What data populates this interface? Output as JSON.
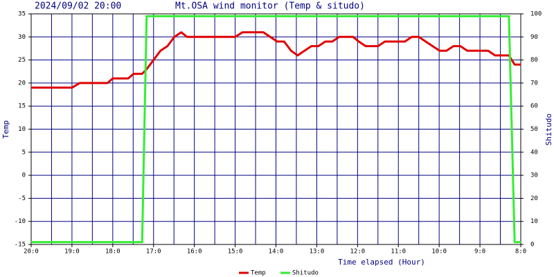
{
  "chart_data": {
    "type": "line",
    "timestamp": "2024/09/02 20:00",
    "title": "Mt.OSA wind monitor (Temp & situdo)",
    "xlabel": "Time elapsed (Hour)",
    "ylabel": "Temp",
    "y2label": "Shitudo",
    "x": [
      20.0,
      19.0,
      18.81,
      18.13,
      18.0,
      17.62,
      17.49,
      17.28,
      17.17,
      17.0,
      16.83,
      16.66,
      16.49,
      16.32,
      16.18,
      15.0,
      14.82,
      14.31,
      14.14,
      13.97,
      13.8,
      13.63,
      13.47,
      13.3,
      13.13,
      12.96,
      12.79,
      12.62,
      12.45,
      12.11,
      11.97,
      11.8,
      11.5,
      11.33,
      10.84,
      10.67,
      10.5,
      10.33,
      10.16,
      9.99,
      9.82,
      9.65,
      9.48,
      9.31,
      8.8,
      8.63,
      8.29,
      8.15,
      8.0
    ],
    "series": [
      {
        "name": "Temp",
        "color": "#e00000",
        "values": [
          19,
          19,
          20,
          20,
          21,
          21,
          22,
          22,
          23,
          25,
          27,
          28,
          30,
          31,
          30,
          30,
          31,
          31,
          30,
          29,
          29,
          27,
          26,
          27,
          28,
          28,
          29,
          29,
          30,
          30,
          29,
          28,
          28,
          29,
          29,
          30,
          30,
          29,
          28,
          27,
          27,
          28,
          28,
          27,
          27,
          26,
          26,
          24,
          24
        ]
      },
      {
        "name": "Shitudo",
        "color": "#33ee33",
        "axis": "y2",
        "values": [
          1,
          1,
          1,
          1,
          1,
          1,
          1,
          1,
          99,
          99,
          99,
          99,
          99,
          99,
          99,
          99,
          99,
          99,
          99,
          99,
          99,
          99,
          99,
          99,
          99,
          99,
          99,
          99,
          99,
          99,
          99,
          99,
          99,
          99,
          99,
          99,
          99,
          99,
          99,
          99,
          99,
          99,
          99,
          99,
          99,
          99,
          99,
          1,
          1
        ]
      }
    ],
    "xlim": [
      20,
      8
    ],
    "xticks": [
      {
        "value": 20,
        "label": "20:0"
      },
      {
        "value": 19,
        "label": "19:0"
      },
      {
        "value": 18,
        "label": "18:0"
      },
      {
        "value": 17,
        "label": "17:0"
      },
      {
        "value": 16,
        "label": "16:0"
      },
      {
        "value": 15,
        "label": "15:0"
      },
      {
        "value": 14,
        "label": "14:0"
      },
      {
        "value": 13,
        "label": "13:0"
      },
      {
        "value": 12,
        "label": "12:0"
      },
      {
        "value": 11,
        "label": "11:0"
      },
      {
        "value": 10,
        "label": "10:0"
      },
      {
        "value": 9,
        "label": "9:0"
      },
      {
        "value": 8,
        "label": "8:0"
      }
    ],
    "ylim": [
      -15,
      35
    ],
    "yticks": [
      -15,
      -10,
      -5,
      0,
      5,
      10,
      15,
      20,
      25,
      30,
      35
    ],
    "y2lim": [
      0,
      100
    ],
    "y2ticks": [
      0,
      10,
      20,
      30,
      40,
      50,
      60,
      70,
      80,
      90,
      100
    ],
    "grid": true
  }
}
